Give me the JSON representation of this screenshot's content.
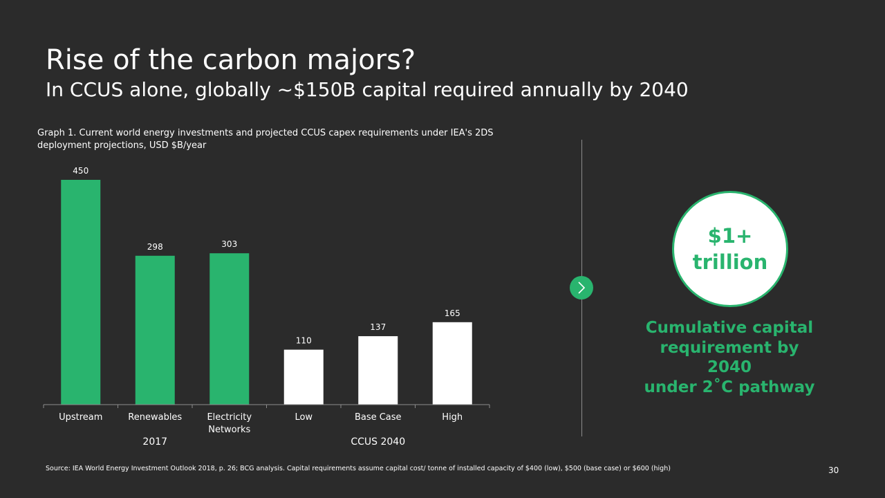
{
  "slide": {
    "title": "Rise of the carbon majors?",
    "subtitle": "In CCUS alone, globally ~$150B capital required annually by 2040",
    "graph_caption": "Graph 1. Current world energy investments and projected CCUS capex requirements under IEA's 2DS deployment projections, USD $B/year",
    "callout_value": "$1+\ntrillion",
    "callout_text": "Cumulative capital\nrequirement by 2040\nunder 2˚C pathway",
    "source": "Source: IEA World Energy Investment Outlook 2018, p. 26; BCG analysis. Capital requirements assume capital cost/ tonne of installed capacity of $400 (low), $500 (base case) or $600 (high)",
    "page_number": "30",
    "icons": {
      "next": "chevron-right-icon"
    }
  },
  "colors": {
    "background": "#2b2b2b",
    "accent_green": "#29b46e",
    "white": "#ffffff"
  },
  "chart_data": {
    "type": "bar",
    "title": "",
    "xlabel": "",
    "ylabel": "",
    "ylim": [
      0,
      450
    ],
    "grid": false,
    "categories": [
      "Upstream",
      "Renewables",
      "Electricity Networks",
      "Low",
      "Base Case",
      "High"
    ],
    "values": [
      450,
      298,
      303,
      110,
      137,
      165
    ],
    "bar_colors": [
      "#29b46e",
      "#29b46e",
      "#29b46e",
      "#ffffff",
      "#ffffff",
      "#ffffff"
    ],
    "groups": [
      {
        "label": "2017",
        "categories": [
          "Upstream",
          "Renewables",
          "Electricity Networks"
        ]
      },
      {
        "label": "CCUS 2040",
        "categories": [
          "Low",
          "Base Case",
          "High"
        ]
      }
    ]
  }
}
